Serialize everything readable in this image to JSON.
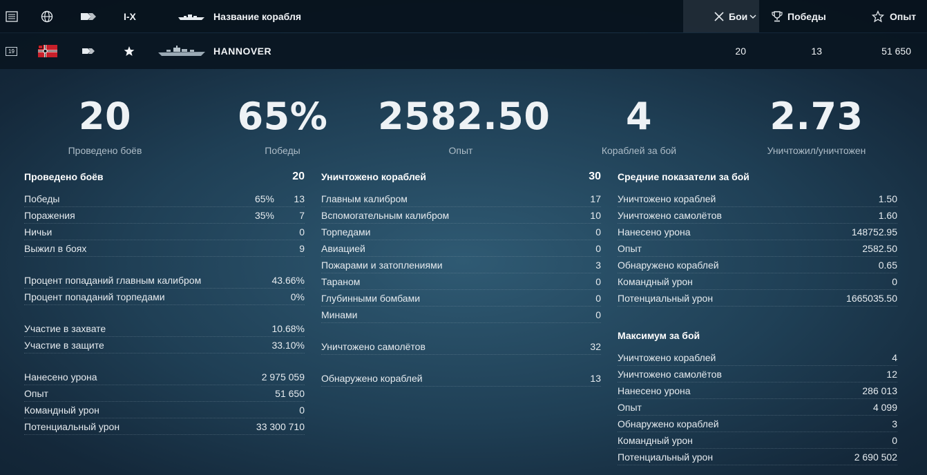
{
  "header": {
    "tier_filter": "I-X",
    "ship_name_col": "Название корабля",
    "battles_col": "Бои",
    "wins_col": "Победы",
    "xp_col": "Опыт"
  },
  "ship": {
    "level_badge": "19",
    "name": "HANNOVER",
    "battles": "20",
    "wins": "13",
    "xp": "51 650"
  },
  "summary": [
    {
      "value": "20",
      "label": "Проведено боёв"
    },
    {
      "value": "65%",
      "label": "Победы"
    },
    {
      "value": "2582.50",
      "label": "Опыт"
    },
    {
      "value": "4",
      "label": "Кораблей за бой"
    },
    {
      "value": "2.73",
      "label": "Уничтожил/уничтожен"
    }
  ],
  "col1": {
    "head": {
      "label": "Проведено боёв",
      "value": "20"
    },
    "wins": {
      "label": "Победы",
      "pct": "65%",
      "value": "13"
    },
    "losses": {
      "label": "Поражения",
      "pct": "35%",
      "value": "7"
    },
    "draws": {
      "label": "Ничьи",
      "value": "0"
    },
    "survived": {
      "label": "Выжил в боях",
      "value": "9"
    },
    "main_hit": {
      "label": "Процент попаданий главным калибром",
      "value": "43.66%"
    },
    "torp_hit": {
      "label": "Процент попаданий торпедами",
      "value": "0%"
    },
    "capture": {
      "label": "Участие в захвате",
      "value": "10.68%"
    },
    "defense": {
      "label": "Участие в защите",
      "value": "33.10%"
    },
    "damage": {
      "label": "Нанесено урона",
      "value": "2 975 059"
    },
    "xp": {
      "label": "Опыт",
      "value": "51 650"
    },
    "team_dmg": {
      "label": "Командный урон",
      "value": "0"
    },
    "potential": {
      "label": "Потенциальный урон",
      "value": "33 300 710"
    }
  },
  "col2": {
    "head": {
      "label": "Уничтожено кораблей",
      "value": "30"
    },
    "main": {
      "label": "Главным калибром",
      "value": "17"
    },
    "secondary": {
      "label": "Вспомогательным калибром",
      "value": "10"
    },
    "torpedoes": {
      "label": "Торпедами",
      "value": "0"
    },
    "aviation": {
      "label": "Авиацией",
      "value": "0"
    },
    "fires": {
      "label": "Пожарами и затоплениями",
      "value": "3"
    },
    "ram": {
      "label": "Тараном",
      "value": "0"
    },
    "depth": {
      "label": "Глубинными бомбами",
      "value": "0"
    },
    "mines": {
      "label": "Минами",
      "value": "0"
    },
    "planes": {
      "label": "Уничтожено самолётов",
      "value": "32"
    },
    "spotted": {
      "label": "Обнаружено кораблей",
      "value": "13"
    }
  },
  "col3": {
    "avg_head": {
      "label": "Средние показатели за бой"
    },
    "avg_kills": {
      "label": "Уничтожено кораблей",
      "value": "1.50"
    },
    "avg_planes": {
      "label": "Уничтожено самолётов",
      "value": "1.60"
    },
    "avg_damage": {
      "label": "Нанесено урона",
      "value": "148752.95"
    },
    "avg_xp": {
      "label": "Опыт",
      "value": "2582.50"
    },
    "avg_spotted": {
      "label": "Обнаружено кораблей",
      "value": "0.65"
    },
    "avg_team": {
      "label": "Командный урон",
      "value": "0"
    },
    "avg_potential": {
      "label": "Потенциальный урон",
      "value": "1665035.50"
    },
    "max_head": {
      "label": "Максимум за бой"
    },
    "max_kills": {
      "label": "Уничтожено кораблей",
      "value": "4"
    },
    "max_planes": {
      "label": "Уничтожено самолётов",
      "value": "12"
    },
    "max_damage": {
      "label": "Нанесено урона",
      "value": "286 013"
    },
    "max_xp": {
      "label": "Опыт",
      "value": "4 099"
    },
    "max_spotted": {
      "label": "Обнаружено кораблей",
      "value": "3"
    },
    "max_team": {
      "label": "Командный урон",
      "value": "0"
    },
    "max_potential": {
      "label": "Потенциальный урон",
      "value": "2 690 502"
    }
  },
  "icons": {
    "level": "level-icon",
    "nation": "globe-icon",
    "type": "ship-type-icon",
    "ship": "ship-silhouette-icon",
    "sort": "sort-cross-icon",
    "wins": "trophy-icon",
    "xp": "star-icon",
    "flag": "german-flag-icon",
    "premium": "star-icon"
  },
  "colors": {
    "accent": "#eef2f5",
    "header_bg": "#08121c",
    "muted": "#aebdc8"
  }
}
